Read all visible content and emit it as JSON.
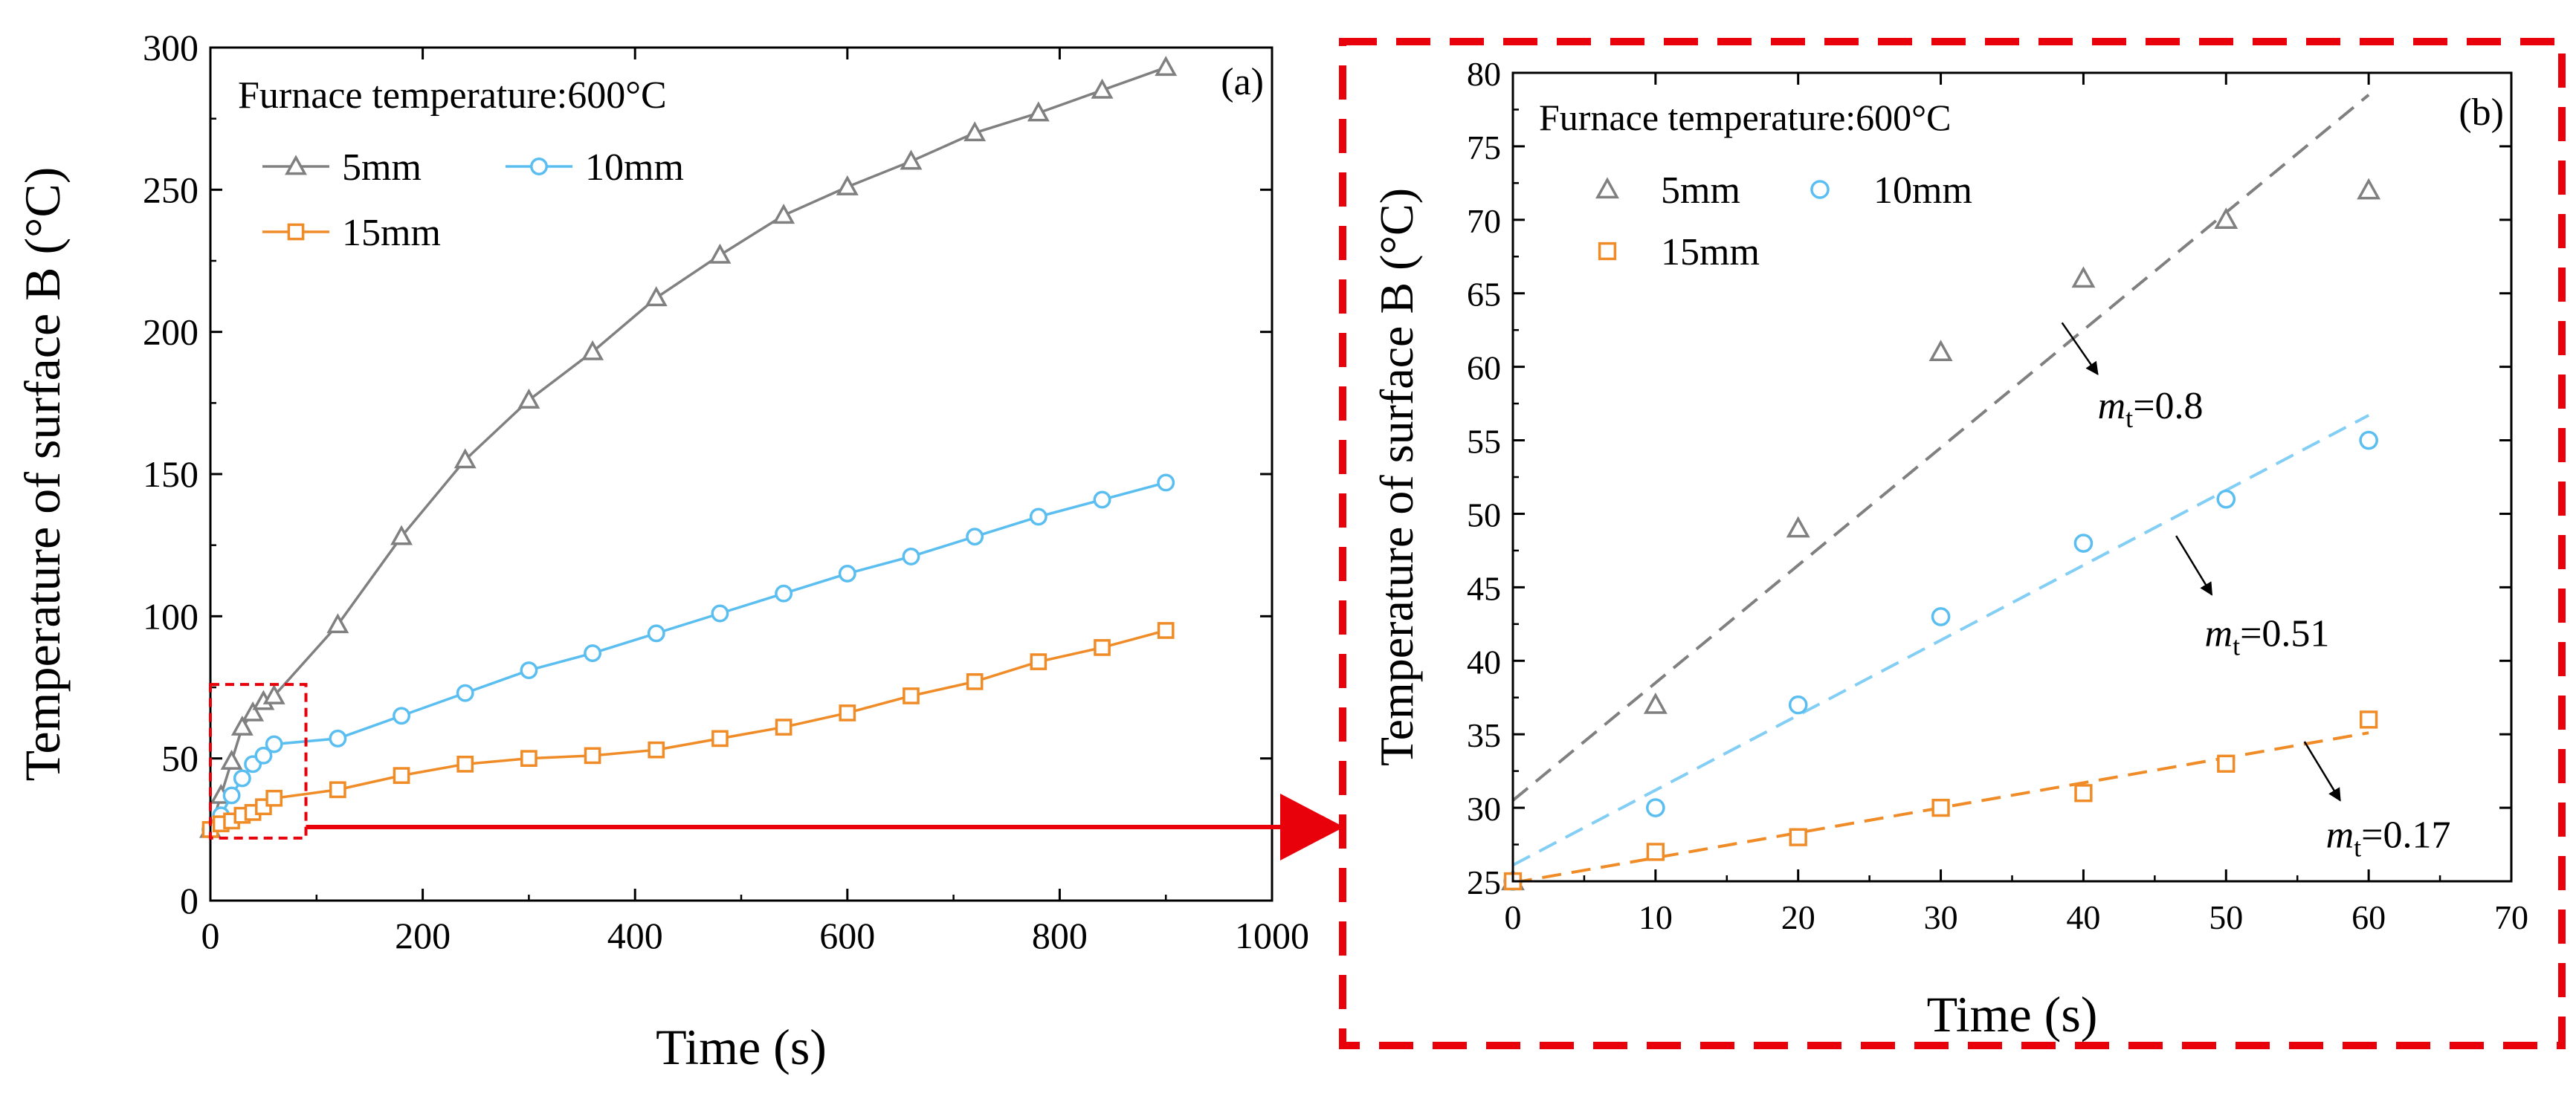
{
  "chart_data": [
    {
      "type": "line",
      "panel_label": "(a)",
      "annotation": "Furnace temperature:600°C",
      "xlabel": "Time (s)",
      "ylabel": "Temperature of surface B (°C)",
      "xlim": [
        0,
        1000
      ],
      "ylim": [
        0,
        300
      ],
      "xticks": [
        0,
        200,
        400,
        600,
        800,
        1000
      ],
      "yticks": [
        0,
        50,
        100,
        150,
        200,
        250,
        300
      ],
      "legend_position": "top-left",
      "series": [
        {
          "name": "5mm",
          "color": "#808080",
          "marker": "triangle",
          "x": [
            0,
            10,
            20,
            30,
            40,
            50,
            60,
            120,
            180,
            240,
            300,
            360,
            420,
            480,
            540,
            600,
            660,
            720,
            780,
            840,
            900
          ],
          "y": [
            25,
            37,
            49,
            61,
            66,
            70,
            72,
            97,
            128,
            155,
            176,
            193,
            212,
            227,
            241,
            251,
            260,
            270,
            277,
            285,
            293
          ]
        },
        {
          "name": "10mm",
          "color": "#5ABEF0",
          "marker": "circle",
          "x": [
            0,
            10,
            20,
            30,
            40,
            50,
            60,
            120,
            180,
            240,
            300,
            360,
            420,
            480,
            540,
            600,
            660,
            720,
            780,
            840,
            900
          ],
          "y": [
            25,
            30,
            37,
            43,
            48,
            51,
            55,
            57,
            65,
            73,
            81,
            87,
            94,
            101,
            108,
            115,
            121,
            128,
            135,
            141,
            147
          ]
        },
        {
          "name": "15mm",
          "color": "#F08C28",
          "marker": "square",
          "x": [
            0,
            10,
            20,
            30,
            40,
            50,
            60,
            120,
            180,
            240,
            300,
            360,
            420,
            480,
            540,
            600,
            660,
            720,
            780,
            840,
            900
          ],
          "y": [
            25,
            27,
            28,
            30,
            31,
            33,
            36,
            39,
            44,
            48,
            50,
            51,
            53,
            57,
            61,
            66,
            72,
            77,
            84,
            89,
            95
          ]
        }
      ],
      "zoom_box": {
        "x": [
          0,
          90
        ],
        "y": [
          22,
          76
        ]
      }
    },
    {
      "type": "scatter",
      "panel_label": "(b)",
      "annotation": "Furnace temperature:600°C",
      "xlabel": "Time (s)",
      "ylabel": "Temperature of surface B (°C)",
      "xlim": [
        0,
        70
      ],
      "ylim": [
        25,
        80
      ],
      "xticks": [
        0,
        10,
        20,
        30,
        40,
        50,
        60,
        70
      ],
      "yticks": [
        25,
        30,
        35,
        40,
        45,
        50,
        55,
        60,
        65,
        70,
        75,
        80
      ],
      "legend_position": "top-left",
      "series": [
        {
          "name": "5mm",
          "color": "#808080",
          "marker": "triangle",
          "x": [
            0,
            10,
            20,
            30,
            40,
            50,
            60
          ],
          "y": [
            25,
            37,
            49,
            61,
            66,
            70,
            72
          ],
          "fit": {
            "slope": 0.8,
            "intercept": 30.5,
            "x_range": [
              0,
              60
            ]
          }
        },
        {
          "name": "10mm",
          "color": "#5ABEF0",
          "marker": "circle",
          "x": [
            0,
            10,
            20,
            30,
            40,
            50,
            60
          ],
          "y": [
            25,
            30,
            37,
            43,
            48,
            51,
            55
          ],
          "fit": {
            "slope": 0.51,
            "intercept": 26.1,
            "x_range": [
              0,
              60
            ]
          }
        },
        {
          "name": "15mm",
          "color": "#F08C28",
          "marker": "square",
          "x": [
            0,
            10,
            20,
            30,
            40,
            50,
            60
          ],
          "y": [
            25,
            27,
            28,
            30,
            31,
            33,
            36
          ],
          "fit": {
            "slope": 0.17,
            "intercept": 24.9,
            "x_range": [
              0,
              60
            ]
          }
        }
      ],
      "fit_annotations": [
        {
          "series": "5mm",
          "label_main": "m",
          "label_sub": "t",
          "label_value": "=0.8",
          "arrow_from": [
            41,
            59.5
          ],
          "arrow_to": [
            38.5,
            63
          ],
          "text_at": [
            41,
            56.5
          ]
        },
        {
          "series": "10mm",
          "label_main": "m",
          "label_sub": "t",
          "label_value": "=0.51",
          "arrow_from": [
            49,
            44.5
          ],
          "arrow_to": [
            46.5,
            48.5
          ],
          "text_at": [
            48.5,
            41
          ]
        },
        {
          "series": "15mm",
          "label_main": "m",
          "label_sub": "t",
          "label_value": "=0.17",
          "arrow_from": [
            58,
            30.5
          ],
          "arrow_to": [
            55.5,
            34.5
          ],
          "text_at": [
            57,
            27.3
          ]
        }
      ]
    }
  ],
  "colors": {
    "highlight": "#E8000B",
    "frame": "#000000"
  }
}
